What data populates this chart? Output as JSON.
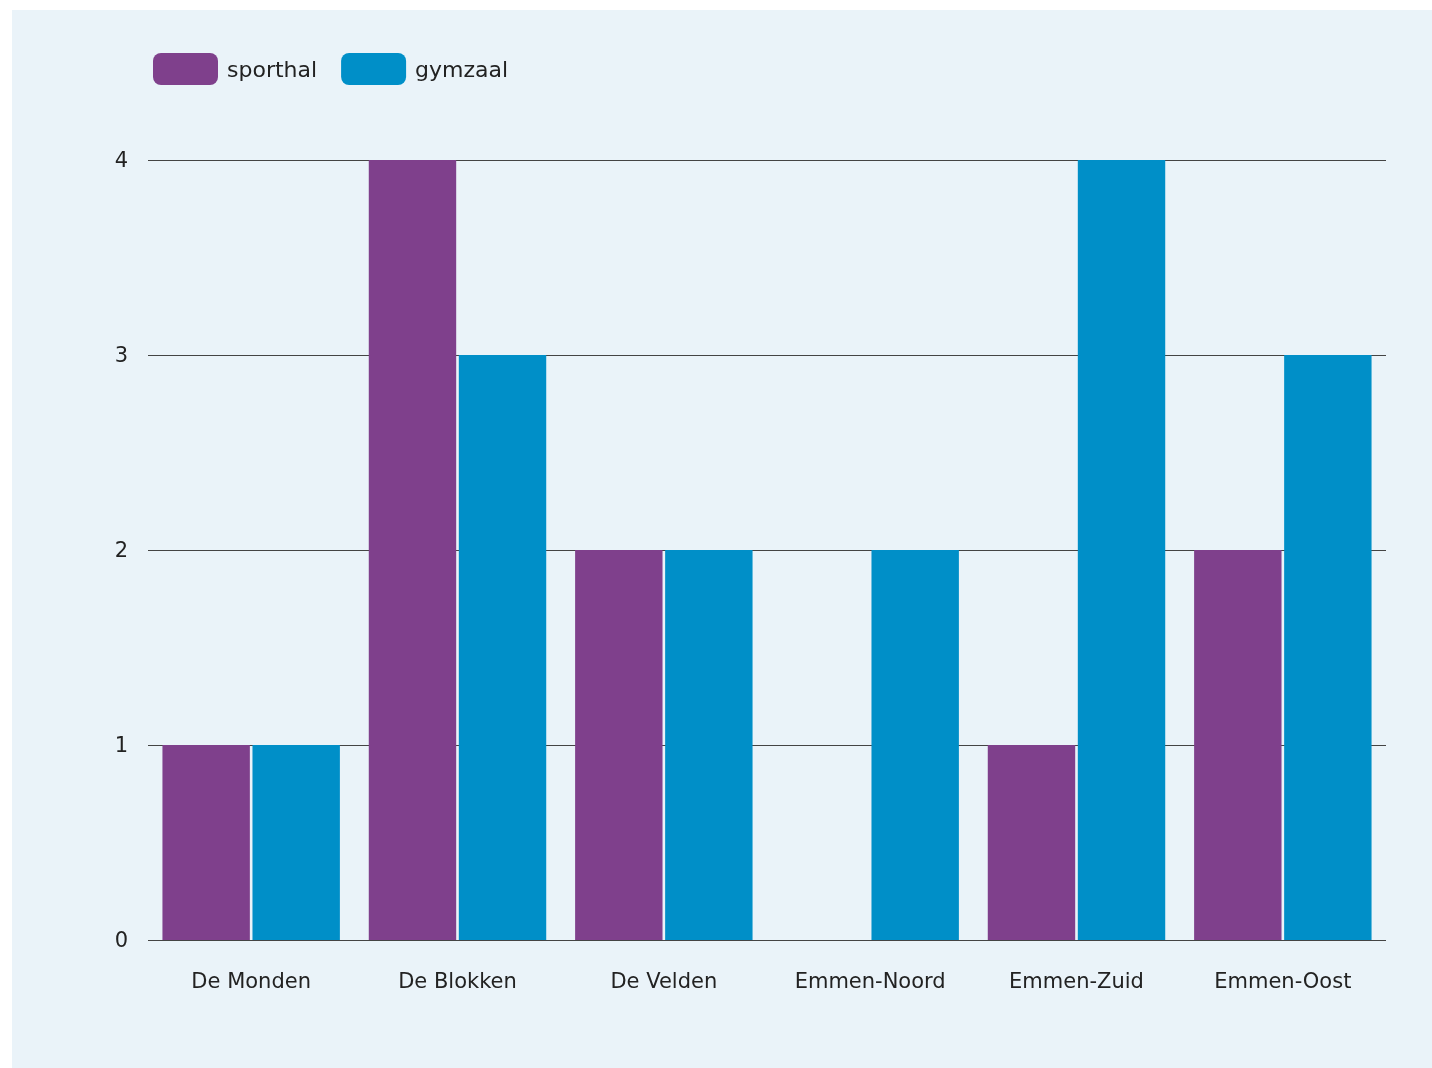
{
  "chart_data": {
    "type": "bar",
    "categories": [
      "De Monden",
      "De Blokken",
      "De Velden",
      "Emmen-Noord",
      "Emmen-Zuid",
      "Emmen-Oost"
    ],
    "series": [
      {
        "name": "sporthal",
        "color": "#7f408c",
        "values": [
          1,
          4,
          2,
          0,
          1,
          2
        ]
      },
      {
        "name": "gymzaal",
        "color": "#008fc8",
        "values": [
          1,
          3,
          2,
          2,
          4,
          3
        ]
      }
    ],
    "ylim": [
      0,
      4
    ],
    "yticks": [
      0,
      1,
      2,
      3,
      4
    ],
    "grid": "y",
    "legend": "top left"
  }
}
